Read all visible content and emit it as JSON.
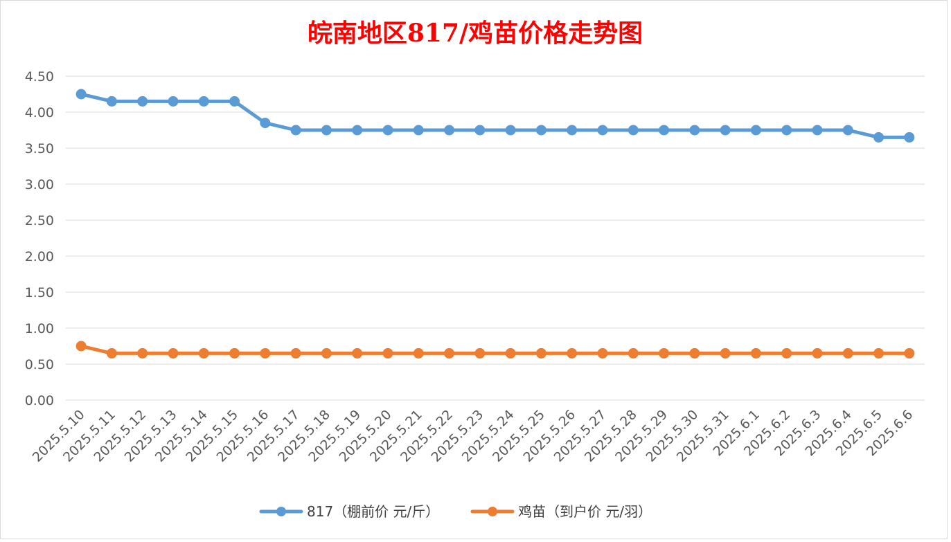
{
  "chart_data": {
    "type": "line",
    "title": "皖南地区817/鸡苗价格走势图",
    "xlabel": "",
    "ylabel": "",
    "ylim": [
      0,
      4.5
    ],
    "yticks": [
      "0.00",
      "0.50",
      "1.00",
      "1.50",
      "2.00",
      "2.50",
      "3.00",
      "3.50",
      "4.00",
      "4.50"
    ],
    "grid": true,
    "legend": "bottom",
    "categories": [
      "2025.5.10",
      "2025.5.11",
      "2025.5.12",
      "2025.5.13",
      "2025.5.14",
      "2025.5.15",
      "2025.5.16",
      "2025.5.17",
      "2025.5.18",
      "2025.5.19",
      "2025.5.20",
      "2025.5.21",
      "2025.5.22",
      "2025.5.23",
      "2025.5.24",
      "2025.5.25",
      "2025.5.26",
      "2025.5.27",
      "2025.5.28",
      "2025.5.29",
      "2025.5.30",
      "2025.5.31",
      "2025.6.1",
      "2025.6.2",
      "2025.6.3",
      "2025.6.4",
      "2025.6.5",
      "2025.6.6"
    ],
    "series": [
      {
        "name": "817（棚前价 元/斤）",
        "color": "#5b9bd5",
        "values": [
          4.25,
          4.15,
          4.15,
          4.15,
          4.15,
          4.15,
          3.85,
          3.75,
          3.75,
          3.75,
          3.75,
          3.75,
          3.75,
          3.75,
          3.75,
          3.75,
          3.75,
          3.75,
          3.75,
          3.75,
          3.75,
          3.75,
          3.75,
          3.75,
          3.75,
          3.75,
          3.65,
          3.65
        ]
      },
      {
        "name": "鸡苗（到户价 元/羽）",
        "color": "#ed7d31",
        "values": [
          0.75,
          0.65,
          0.65,
          0.65,
          0.65,
          0.65,
          0.65,
          0.65,
          0.65,
          0.65,
          0.65,
          0.65,
          0.65,
          0.65,
          0.65,
          0.65,
          0.65,
          0.65,
          0.65,
          0.65,
          0.65,
          0.65,
          0.65,
          0.65,
          0.65,
          0.65,
          0.65,
          0.65
        ]
      }
    ]
  }
}
